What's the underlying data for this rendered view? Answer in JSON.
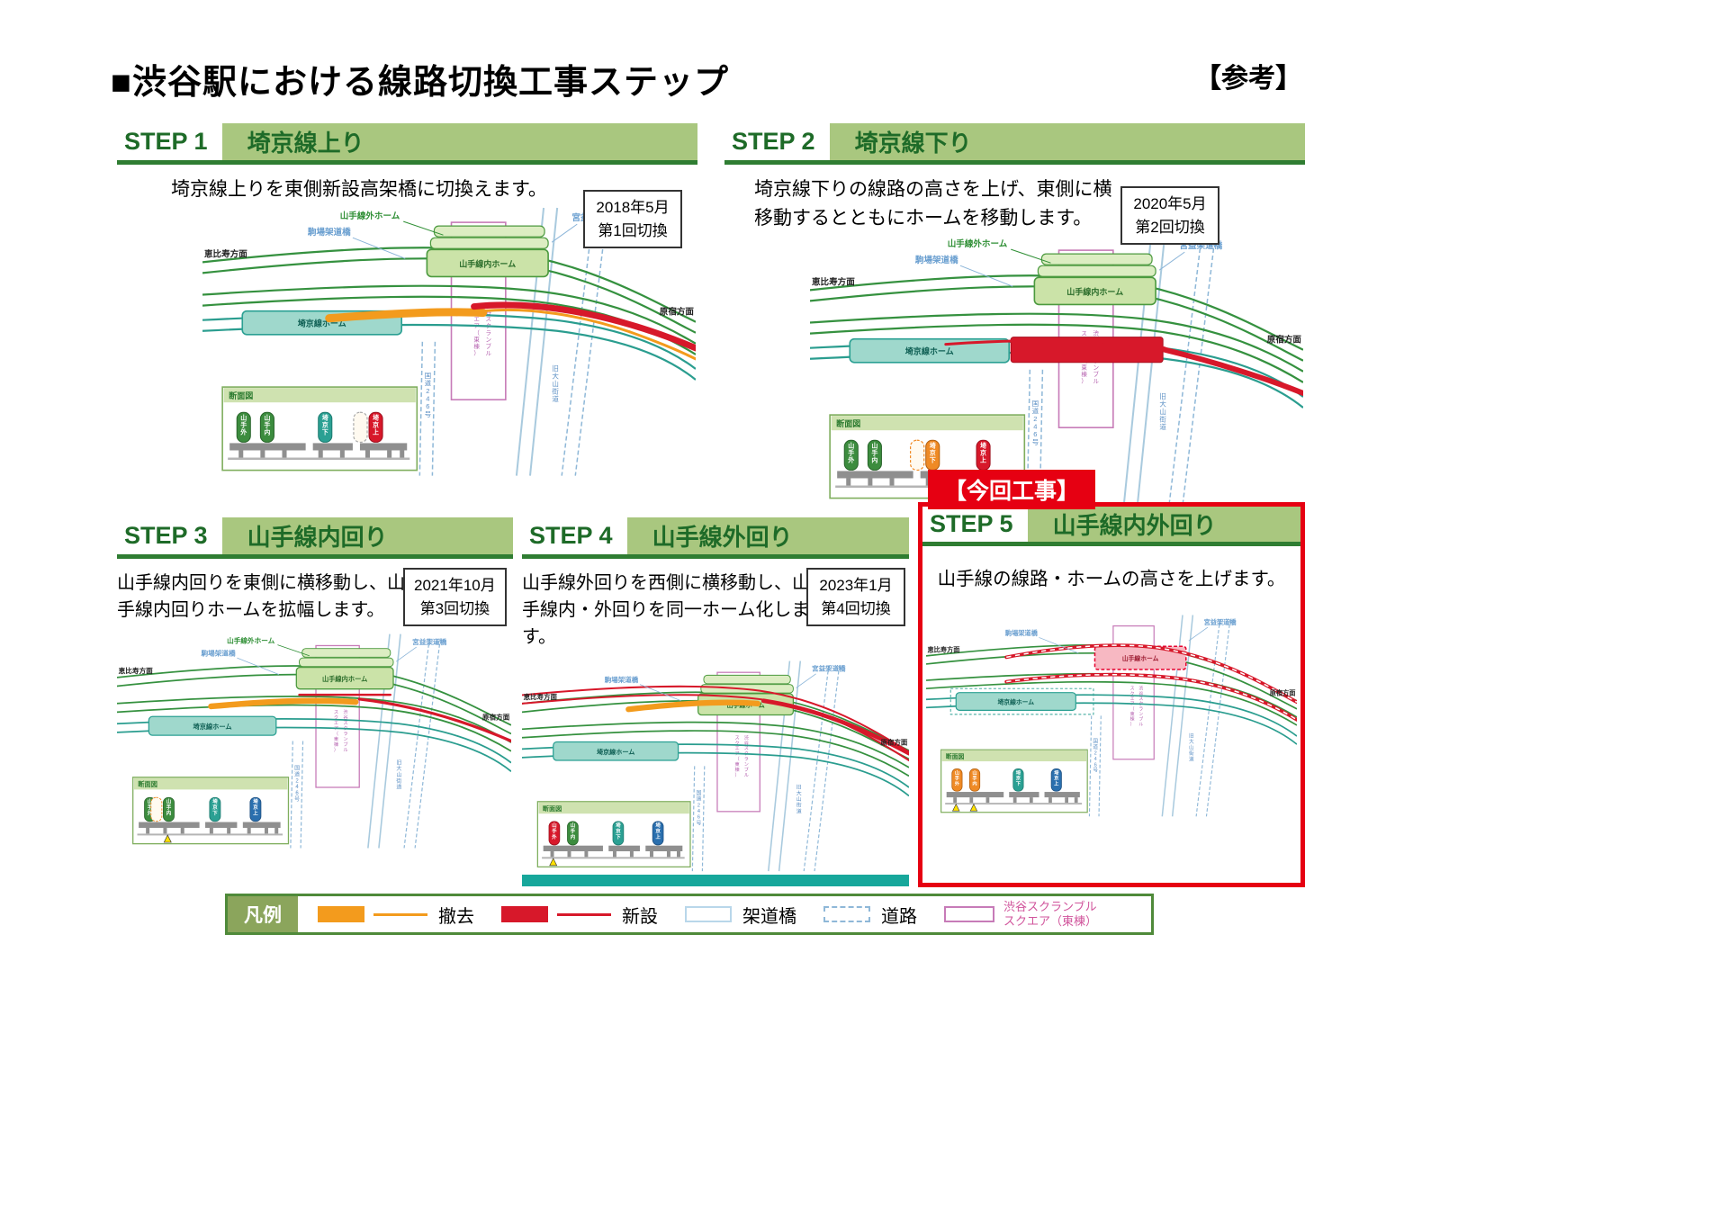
{
  "page": {
    "title": "■渋谷駅における線路切換工事ステップ",
    "reference_tag": "【参考】",
    "current_work_label": "【今回工事】"
  },
  "steps": [
    {
      "step_label": "STEP 1",
      "name": "埼京線上り",
      "description": "埼京線上りを東側新設高架橋に切換えます。",
      "date_line1": "2018年5月",
      "date_line2": "第1回切換"
    },
    {
      "step_label": "STEP 2",
      "name": "埼京線下り",
      "description": "埼京線下りの線路の高さを上げ、東側に横移動するとともにホームを移動します。",
      "date_line1": "2020年5月",
      "date_line2": "第2回切換"
    },
    {
      "step_label": "STEP 3",
      "name": "山手線内回り",
      "description": "山手線内回りを東側に横移動し、山手線内回りホームを拡幅します。",
      "date_line1": "2021年10月",
      "date_line2": "第3回切換"
    },
    {
      "step_label": "STEP 4",
      "name": "山手線外回り",
      "description": "山手線外回りを西側に横移動し、山手線内・外回りを同一ホーム化します。",
      "date_line1": "2023年1月",
      "date_line2": "第4回切換"
    },
    {
      "step_label": "STEP 5",
      "name": "山手線内外回り",
      "description": "山手線の線路・ホームの高さを上げます。",
      "date_line1": "",
      "date_line2": ""
    }
  ],
  "diagram_labels": {
    "yamanote_outer_platform": "山手線外ホーム",
    "komaba_bridge": "駒場架道橋",
    "yamanote_inner_platform": "山手線内ホーム",
    "yamanote_platform": "山手線ホーム",
    "saikyo_platform": "埼京線ホーム",
    "ebisu": "恵比寿方面",
    "harajuku": "原宿方面",
    "miyamasu_bridge": "宮益架道橋",
    "old_oyama_kaido": "旧大山街道",
    "route_246": "国道246号",
    "scramble_square": "渋谷スクランブル\nスクエア（東棟）",
    "cross_section": "断面図",
    "cs_yamanote_outer": "山手外",
    "cs_yamanote_inner": "山手内",
    "cs_saikyo_down": "埼京下",
    "cs_saikyo_up": "埼京上"
  },
  "legend": {
    "title": "凡例",
    "items": [
      {
        "label": "撤去",
        "type": "removal"
      },
      {
        "label": "新設",
        "type": "new"
      },
      {
        "label": "架道橋",
        "type": "bridge"
      },
      {
        "label": "道路",
        "type": "road"
      },
      {
        "label": "渋谷スクランブル\nスクエア（東棟）",
        "type": "building"
      }
    ]
  },
  "colors": {
    "header_green_bg": "#a9c77f",
    "header_green_text": "#1e6b28",
    "track_green": "#35913f",
    "track_teal": "#2a9d8f",
    "platform_green": "#cbe3a8",
    "platform_teal": "#9fd8cc",
    "platform_pink": "#f7b8c2",
    "removal_orange": "#f39b1d",
    "new_red": "#d7182a",
    "bridge_blue": "#a9cade",
    "road_blue": "#8fb8d8",
    "building_purple": "#b45fae",
    "highlight_red": "#e60012",
    "teal_bar": "#17a79b"
  }
}
